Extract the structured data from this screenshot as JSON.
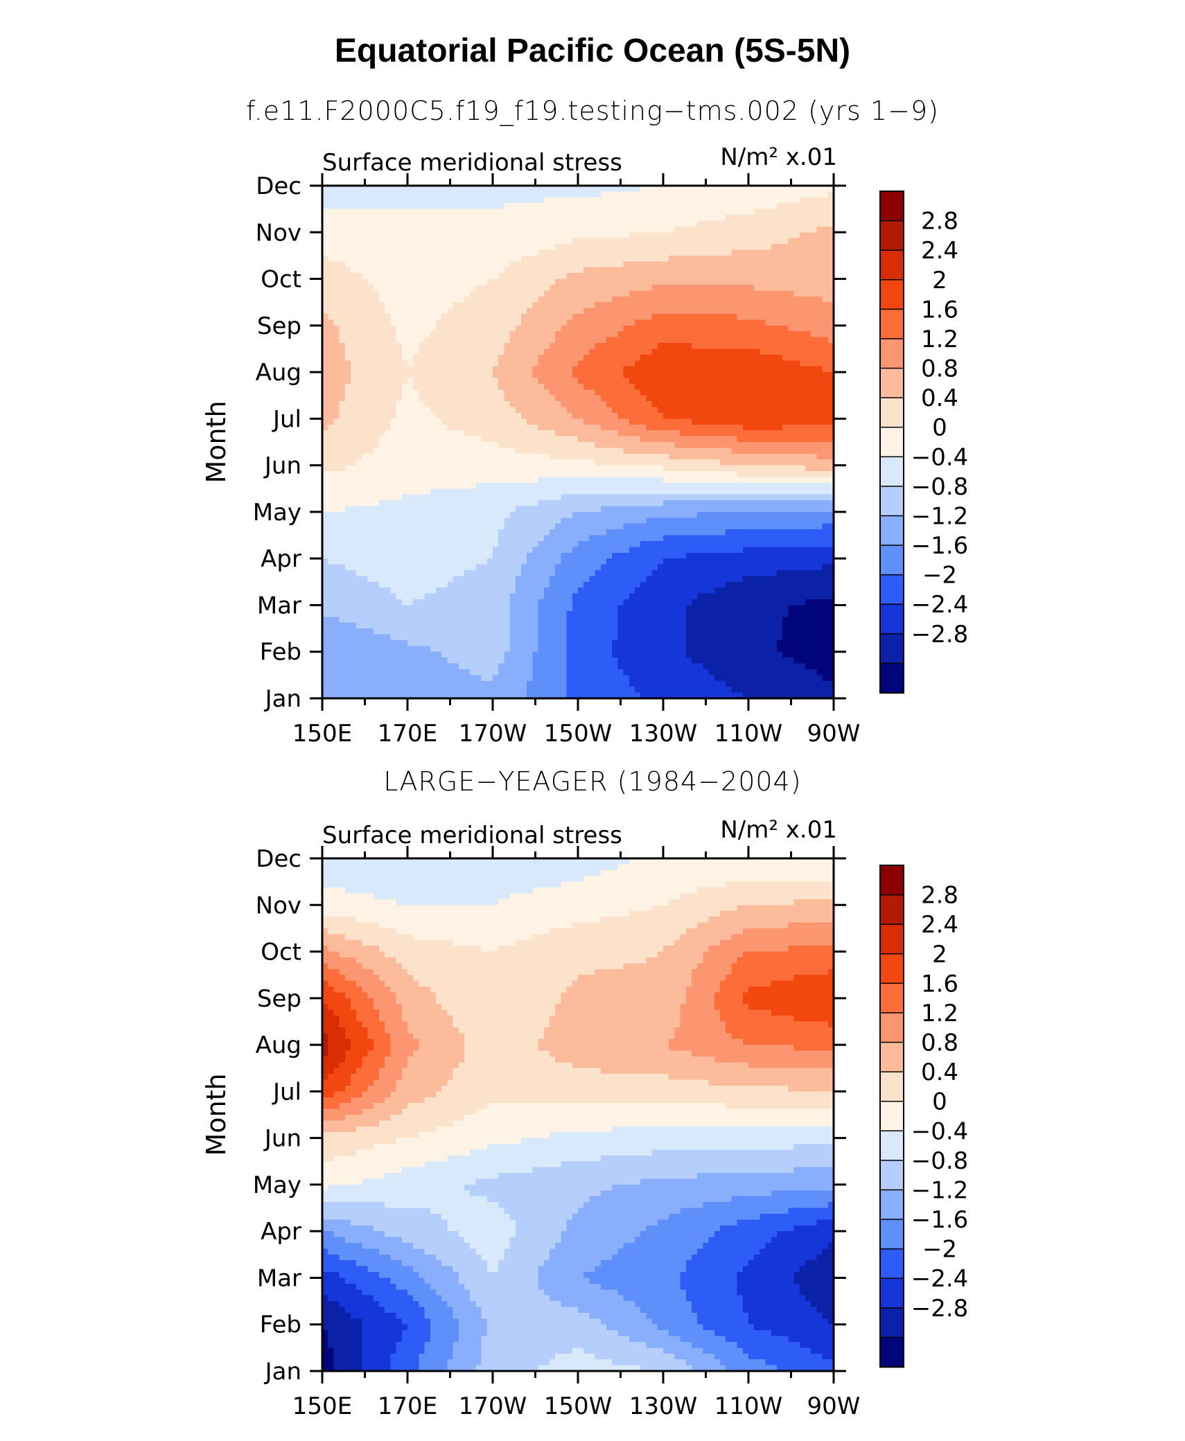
{
  "figure": {
    "title": "Equatorial Pacific Ocean (5S-5N)"
  },
  "chart_data": [
    {
      "type": "heatmap",
      "title": "f.e11.F2000C5.f19_f19.testing−tms.002 (yrs 1−9)",
      "left_string": "Surface meridional stress",
      "units_label": "N/m² x.01",
      "xlabel": "",
      "ylabel": "Month",
      "x": [
        "150E",
        "170E",
        "170W",
        "150W",
        "130W",
        "110W",
        "90W"
      ],
      "y": [
        "Jan",
        "Feb",
        "Mar",
        "Apr",
        "May",
        "Jun",
        "Jul",
        "Aug",
        "Sep",
        "Oct",
        "Nov",
        "Dec"
      ],
      "values": [
        [
          -1.0,
          -1.1,
          -0.9,
          -1.7,
          -2.1,
          -2.4,
          -2.7
        ],
        [
          -1.2,
          -0.9,
          -0.6,
          -1.8,
          -2.3,
          -2.7,
          -3.0
        ],
        [
          -0.7,
          -0.4,
          -0.6,
          -1.7,
          -2.3,
          -2.7,
          -2.9
        ],
        [
          -0.4,
          -0.2,
          -0.4,
          -1.4,
          -2.0,
          -2.2,
          -2.3
        ],
        [
          0.0,
          -0.1,
          -0.3,
          -0.8,
          -1.1,
          -1.2,
          -1.3
        ],
        [
          0.5,
          0.2,
          0.2,
          0.3,
          0.5,
          0.8,
          1.0
        ],
        [
          0.9,
          0.3,
          0.6,
          1.2,
          2.0,
          2.3,
          2.2
        ],
        [
          1.0,
          0.4,
          0.8,
          1.7,
          2.3,
          2.3,
          2.0
        ],
        [
          0.9,
          0.3,
          0.6,
          1.3,
          1.8,
          1.7,
          1.4
        ],
        [
          0.6,
          0.2,
          0.4,
          0.9,
          1.1,
          1.1,
          1.0
        ],
        [
          0.2,
          0.1,
          0.1,
          0.3,
          0.4,
          0.6,
          0.9
        ],
        [
          -0.2,
          -0.1,
          -0.1,
          -0.1,
          0.0,
          0.1,
          0.3
        ]
      ]
    },
    {
      "type": "heatmap",
      "title": "LARGE−YEAGER (1984−2004)",
      "left_string": "Surface meridional stress",
      "units_label": "N/m² x.01",
      "xlabel": "",
      "ylabel": "Month",
      "x": [
        "150E",
        "170E",
        "170W",
        "150W",
        "130W",
        "110W",
        "90W"
      ],
      "y": [
        "Jan",
        "Feb",
        "Mar",
        "Apr",
        "May",
        "Jun",
        "Jul",
        "Aug",
        "Sep",
        "Oct",
        "Nov",
        "Dec"
      ],
      "values": [
        [
          -3.0,
          -1.7,
          -0.6,
          -0.2,
          -0.4,
          -1.4,
          -1.9
        ],
        [
          -2.8,
          -2.0,
          -0.7,
          -0.6,
          -1.3,
          -2.0,
          -2.4
        ],
        [
          -2.2,
          -1.4,
          -0.4,
          -1.2,
          -1.5,
          -2.1,
          -2.7
        ],
        [
          -1.2,
          -0.6,
          -0.2,
          -0.9,
          -1.3,
          -1.8,
          -2.3
        ],
        [
          0.1,
          -0.2,
          -0.5,
          -0.7,
          -0.9,
          -1.0,
          -1.1
        ],
        [
          0.7,
          0.4,
          0.1,
          -0.1,
          -0.2,
          -0.2,
          -0.3
        ],
        [
          2.3,
          1.0,
          0.5,
          0.6,
          0.6,
          0.7,
          0.8
        ],
        [
          3.0,
          1.3,
          0.6,
          1.0,
          1.2,
          1.6,
          1.7
        ],
        [
          2.4,
          1.0,
          0.4,
          0.9,
          0.9,
          2.1,
          2.4
        ],
        [
          1.3,
          0.6,
          0.4,
          0.7,
          0.8,
          1.6,
          1.7
        ],
        [
          0.2,
          0.0,
          0.0,
          0.2,
          0.4,
          0.8,
          0.9
        ],
        [
          -0.3,
          -0.4,
          -0.2,
          -0.2,
          0.1,
          0.0,
          0.0
        ]
      ]
    }
  ],
  "colorbar": {
    "labels": [
      "2.8",
      "2.4",
      "2",
      "1.6",
      "1.2",
      "0.8",
      "0.4",
      "0",
      "−0.4",
      "−0.8",
      "−1.2",
      "−1.6",
      "−2",
      "−2.4",
      "−2.8"
    ],
    "levels": [
      2.8,
      2.4,
      2.0,
      1.6,
      1.2,
      0.8,
      0.4,
      0.0,
      -0.4,
      -0.8,
      -1.2,
      -1.6,
      -2.0,
      -2.4,
      -2.8
    ],
    "colors_top_to_bottom": [
      "#8b0000",
      "#b21a05",
      "#d92e03",
      "#f2480f",
      "#fd6d3a",
      "#fc9670",
      "#fcbc9c",
      "#fde2cb",
      "#fef3e4",
      "#d7e9fb",
      "#b5cefb",
      "#89aefb",
      "#5f8ffb",
      "#2e5cf7",
      "#1536d8",
      "#0a21a8",
      "#01057c"
    ]
  }
}
